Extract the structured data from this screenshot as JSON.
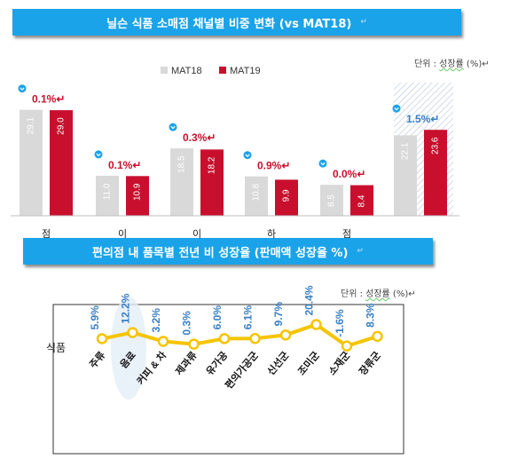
{
  "header1": {
    "title": "닐슨 식품 소매점 채널별 비중 변화 (vs MAT18)",
    "mark": "↵"
  },
  "header2": {
    "title": "편의점 내 품목별 전년 비 성장율 (판매액 성장율 %)",
    "mark": "↵"
  },
  "unit1": {
    "prefix": "단위 : ",
    "underlined": "성장률",
    "suffix": " (%)↵"
  },
  "unit2": {
    "prefix": "단위 : ",
    "underlined": "성장률",
    "suffix": " (%)↵"
  },
  "colors": {
    "mat18": "#d9d9d9",
    "mat19": "#c8102e",
    "accent": "#1aa3e8",
    "line": "#f5c400",
    "label_blue": "#3a7fc4"
  },
  "chart_data": [
    {
      "type": "bar",
      "series": [
        {
          "name": "MAT18",
          "values": [
            29.1,
            11.0,
            18.5,
            10.8,
            8.5,
            22.1
          ]
        },
        {
          "name": "MAT19",
          "values": [
            29.0,
            10.9,
            18.2,
            9.9,
            8.4,
            23.6
          ]
        }
      ],
      "value_labels": [
        "29.1",
        "29.0",
        "11.0",
        "10.9",
        "18.5",
        "18.2",
        "10.8",
        "9.9",
        "8.5",
        "8.4",
        "22.1",
        "23.6"
      ],
      "changes": [
        "0.1%↵",
        "0.1%↵",
        "0.3%↵",
        "0.9%↵",
        "0.0%↵",
        "1.5%↵"
      ],
      "partial_category_labels": [
        "점",
        "이",
        "이",
        "하",
        "점"
      ],
      "legend_position": "top"
    },
    {
      "type": "line",
      "row_label": "식품",
      "categories": [
        "주류",
        "음료",
        "커피 & 차",
        "제과류",
        "유가공",
        "편의가공군",
        "신선군",
        "조미군",
        "소재군",
        "장류군"
      ],
      "values": [
        5.9,
        12.2,
        3.2,
        0.3,
        6.0,
        6.1,
        9.7,
        20.4,
        -1.6,
        8.3
      ],
      "labels": [
        "5.9%",
        "12.2%",
        "3.2%",
        "0.3%",
        "6.0%",
        "6.1%",
        "9.7%",
        "20.4%",
        "-1.6%",
        "8.3%"
      ]
    }
  ]
}
